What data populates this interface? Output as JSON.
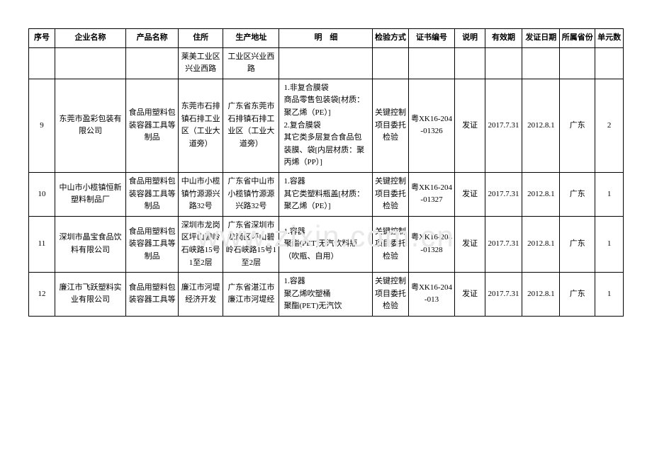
{
  "table": {
    "headers": {
      "seq": "序号",
      "company": "企业名称",
      "product": "产品名称",
      "address": "住所",
      "prodaddr": "生产地址",
      "detail": "明　细",
      "inspect": "检验方式",
      "cert": "证书编号",
      "explain": "说明",
      "valid": "有效期",
      "issue": "发证日期",
      "province": "所属省份",
      "unit": "单元数"
    },
    "rows": [
      {
        "seq": "",
        "company": "",
        "product": "",
        "address": "莱美工业区兴业西路",
        "prodaddr": "工业区兴业西路",
        "detail": "",
        "inspect": "",
        "cert": "",
        "explain": "",
        "valid": "",
        "issue": "",
        "province": "",
        "unit": ""
      },
      {
        "seq": "9",
        "company": "东莞市盈彩包装有限公司",
        "product": "食品用塑料包装容器工具等制品",
        "address": "东莞市石排镇石排工业区（工业大道旁）",
        "prodaddr": "广东省东莞市石排镇石排工业区（工业大道旁）",
        "detail": "1.非复合膜袋\n商品零售包装袋[材质：聚乙烯（PE）]\n2.复合膜袋\n其它类多层复合食品包装膜、袋[内层材质：聚丙烯（PP）]",
        "inspect": "关键控制项目委托检验",
        "cert": "粤XK16-204-01326",
        "explain": "发证",
        "valid": "2017.7.31",
        "issue": "2012.8.1",
        "province": "广东",
        "unit": "2"
      },
      {
        "seq": "10",
        "company": "中山市小榄镇恒新塑料制品厂",
        "product": "食品用塑料包装容器工具等制品",
        "address": "中山市小榄镇竹源源兴路32号",
        "prodaddr": "广东省中山市小榄镇竹源源兴路32号",
        "detail": "1.容器\n其它类塑料瓶盖[材质：聚乙烯（PE）]",
        "inspect": "关键控制项目委托检验",
        "cert": "粤XK16-204-01327",
        "explain": "发证",
        "valid": "2017.7.31",
        "issue": "2012.8.1",
        "province": "广东",
        "unit": "1"
      },
      {
        "seq": "11",
        "company": "深圳市晶宝食品饮料有限公司",
        "product": "食品用塑料包装容器工具等制品",
        "address": "深圳市龙岗区坪山碧岭石峡路15号1至2层",
        "prodaddr": "广东省深圳市龙岗区坪山碧岭石峡路15号1至2层",
        "detail": "1.容器\n聚酯(PET)无汽饮料瓶（吹瓶、自用）",
        "inspect": "关键控制项目委托检验",
        "cert": "粤XK16-204-01328",
        "explain": "发证",
        "valid": "2017.7.31",
        "issue": "2012.8.1",
        "province": "广东",
        "unit": "1"
      },
      {
        "seq": "12",
        "company": "廉江市飞跃塑料实业有限公司",
        "product": "食品用塑料包装容器工具等",
        "address": "廉江市河堤经济开发",
        "prodaddr": "广东省湛江市廉江市河堤经",
        "detail": "1.容器\n聚乙烯吹塑桶\n聚酯(PET)无汽饮",
        "inspect": "关键控制项目委托检验",
        "cert": "粤XK16-204-013",
        "explain": "发证",
        "valid": "2017.7.31",
        "issue": "2012.8.1",
        "province": "广东",
        "unit": "1"
      }
    ]
  },
  "watermark": "www.zixin.com.cn",
  "styling": {
    "border_color": "#000000",
    "background_color": "#ffffff",
    "text_color": "#000000",
    "watermark_color": "#e8e8e8",
    "font_family": "SimSun",
    "base_font_size": 11,
    "watermark_font_size": 42
  }
}
